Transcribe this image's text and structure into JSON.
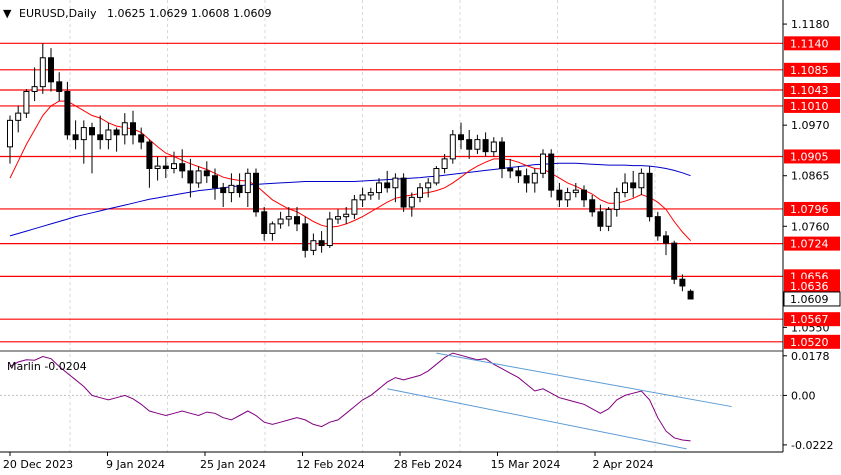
{
  "header": {
    "symbol_timeframe": "EURUSD,Daily",
    "ohlc": "1.0625 1.0629 1.0608 1.0609",
    "marker": "▼"
  },
  "indicator": {
    "label": "Marlin -0.0204"
  },
  "colors": {
    "bull_candle": "#ffffff",
    "bear_candle": "#000000",
    "level_line": "#ff0000",
    "ma_fast": "#ff0000",
    "ma_slow": "#0000c8",
    "oscillator": "#800080",
    "channel": "#5b9bd5",
    "last_price_tag": "#000000"
  },
  "chart_data": [
    {
      "type": "candlestick",
      "title": "EURUSD,Daily",
      "ylim": [
        1.0503,
        1.123
      ],
      "price_ticks": [
        "1.1180",
        "1.0970",
        "1.0865",
        "1.0760",
        "1.0550"
      ],
      "x_ticks": [
        "20 Dec 2023",
        "9 Jan 2024",
        "25 Jan 2024",
        "12 Feb 2024",
        "28 Feb 2024",
        "15 Mar 2024",
        "2 Apr 2024"
      ],
      "levels": [
        {
          "value": 1.114,
          "label": "1.1140"
        },
        {
          "value": 1.1085,
          "label": "1.1085"
        },
        {
          "value": 1.1043,
          "label": "1.1043"
        },
        {
          "value": 1.101,
          "label": "1.1010"
        },
        {
          "value": 1.0905,
          "label": "1.0905"
        },
        {
          "value": 1.0796,
          "label": "1.0796"
        },
        {
          "value": 1.0724,
          "label": "1.0724"
        },
        {
          "value": 1.0656,
          "label": "1.0656"
        },
        {
          "value": 1.0567,
          "label": "1.0567"
        },
        {
          "value": 1.052,
          "label": "1.0520"
        }
      ],
      "extra_tags": [
        {
          "value": 1.0636,
          "label": "1.0636"
        },
        {
          "value": 1.0609,
          "label": "1.0609",
          "style": "last-price"
        }
      ],
      "ohlc": [
        [
          1.0925,
          1.099,
          1.089,
          1.098
        ],
        [
          1.098,
          1.101,
          1.0955,
          1.0995
        ],
        [
          1.0995,
          1.1045,
          1.0985,
          1.104
        ],
        [
          1.104,
          1.109,
          1.102,
          1.105
        ],
        [
          1.105,
          1.114,
          1.1035,
          1.111
        ],
        [
          1.111,
          1.113,
          1.104,
          1.106
        ],
        [
          1.106,
          1.108,
          1.102,
          1.104
        ],
        [
          1.104,
          1.106,
          1.094,
          1.095
        ],
        [
          1.095,
          1.098,
          1.092,
          1.094
        ],
        [
          1.094,
          1.098,
          1.089,
          1.0965
        ],
        [
          1.0965,
          1.0975,
          1.087,
          1.095
        ],
        [
          1.095,
          1.099,
          1.092,
          1.094
        ],
        [
          1.094,
          1.0975,
          1.092,
          1.096
        ],
        [
          1.096,
          1.0965,
          1.0915,
          1.095
        ],
        [
          1.095,
          1.0995,
          1.093,
          1.0975
        ],
        [
          1.0975,
          1.1,
          1.093,
          1.095
        ],
        [
          1.095,
          1.0965,
          1.092,
          1.0935
        ],
        [
          1.0935,
          1.094,
          1.084,
          1.088
        ],
        [
          1.088,
          1.0905,
          1.0855,
          1.0885
        ],
        [
          1.0885,
          1.0905,
          1.086,
          1.088
        ],
        [
          1.088,
          1.0915,
          1.087,
          1.089
        ],
        [
          1.089,
          1.092,
          1.086,
          1.0875
        ],
        [
          1.0875,
          1.09,
          1.082,
          1.085
        ],
        [
          1.085,
          1.0885,
          1.084,
          1.0875
        ],
        [
          1.0875,
          1.0895,
          1.085,
          1.0865
        ],
        [
          1.0865,
          1.088,
          1.0815,
          1.084
        ],
        [
          1.084,
          1.085,
          1.08,
          1.083
        ],
        [
          1.083,
          1.087,
          1.081,
          1.0845
        ],
        [
          1.0845,
          1.087,
          1.082,
          1.083
        ],
        [
          1.083,
          1.088,
          1.08,
          1.087
        ],
        [
          1.087,
          1.088,
          1.078,
          1.079
        ],
        [
          1.079,
          1.08,
          1.073,
          1.0745
        ],
        [
          1.0745,
          1.077,
          1.073,
          1.0765
        ],
        [
          1.0765,
          1.079,
          1.0755,
          1.0775
        ],
        [
          1.0775,
          1.08,
          1.076,
          1.078
        ],
        [
          1.078,
          1.08,
          1.075,
          1.0765
        ],
        [
          1.0765,
          1.078,
          1.0695,
          1.071
        ],
        [
          1.071,
          1.0745,
          1.07,
          1.073
        ],
        [
          1.073,
          1.075,
          1.0705,
          1.072
        ],
        [
          1.072,
          1.079,
          1.0715,
          1.0775
        ],
        [
          1.0775,
          1.0795,
          1.0765,
          1.078
        ],
        [
          1.078,
          1.08,
          1.0765,
          1.0785
        ],
        [
          1.0785,
          1.0825,
          1.0775,
          1.0815
        ],
        [
          1.0815,
          1.084,
          1.08,
          1.0825
        ],
        [
          1.0825,
          1.084,
          1.0815,
          1.083
        ],
        [
          1.083,
          1.086,
          1.0815,
          1.085
        ],
        [
          1.085,
          1.0875,
          1.083,
          1.084
        ],
        [
          1.084,
          1.087,
          1.081,
          1.086
        ],
        [
          1.086,
          1.087,
          1.079,
          1.08
        ],
        [
          1.08,
          1.083,
          1.078,
          1.082
        ],
        [
          1.082,
          1.085,
          1.081,
          1.084
        ],
        [
          1.084,
          1.086,
          1.082,
          1.085
        ],
        [
          1.085,
          1.0885,
          1.0845,
          1.088
        ],
        [
          1.088,
          1.091,
          1.087,
          1.09
        ],
        [
          1.09,
          1.096,
          1.089,
          1.095
        ],
        [
          1.095,
          1.0975,
          1.092,
          1.094
        ],
        [
          1.094,
          1.096,
          1.09,
          1.092
        ],
        [
          1.092,
          1.095,
          1.091,
          1.094
        ],
        [
          1.094,
          1.0955,
          1.0905,
          1.0915
        ],
        [
          1.0915,
          1.0945,
          1.0905,
          1.0935
        ],
        [
          1.0935,
          1.0945,
          1.086,
          1.088
        ],
        [
          1.088,
          1.09,
          1.086,
          1.0875
        ],
        [
          1.0875,
          1.0885,
          1.085,
          1.0865
        ],
        [
          1.0865,
          1.088,
          1.083,
          1.085
        ],
        [
          1.085,
          1.088,
          1.083,
          1.087
        ],
        [
          1.087,
          1.092,
          1.086,
          1.091
        ],
        [
          1.091,
          1.092,
          1.082,
          1.0835
        ],
        [
          1.0835,
          1.085,
          1.08,
          1.0815
        ],
        [
          1.0815,
          1.084,
          1.08,
          1.083
        ],
        [
          1.083,
          1.085,
          1.082,
          1.0835
        ],
        [
          1.0835,
          1.0845,
          1.08,
          1.0815
        ],
        [
          1.0815,
          1.0825,
          1.078,
          1.079
        ],
        [
          1.079,
          1.0805,
          1.075,
          1.076
        ],
        [
          1.076,
          1.08,
          1.075,
          1.0795
        ],
        [
          1.0795,
          1.084,
          1.078,
          1.083
        ],
        [
          1.083,
          1.087,
          1.082,
          1.085
        ],
        [
          1.085,
          1.0875,
          1.082,
          1.084
        ],
        [
          1.084,
          1.088,
          1.0825,
          1.087
        ],
        [
          1.087,
          1.0885,
          1.077,
          1.078
        ],
        [
          1.078,
          1.079,
          1.073,
          1.074
        ],
        [
          1.074,
          1.075,
          1.07,
          1.0725
        ],
        [
          1.0725,
          1.073,
          1.064,
          1.065
        ],
        [
          1.065,
          1.066,
          1.0625,
          1.0636
        ],
        [
          1.0625,
          1.0629,
          1.0608,
          1.0609
        ]
      ],
      "ma_fast": [
        1.086,
        1.0895,
        1.093,
        1.096,
        1.099,
        1.101,
        1.102,
        1.102,
        1.101,
        1.1,
        1.099,
        1.0985,
        1.0975,
        1.0968,
        1.0965,
        1.0962,
        1.0955,
        1.094,
        1.0925,
        1.0912,
        1.0905,
        1.0897,
        1.089,
        1.0884,
        1.0878,
        1.087,
        1.0862,
        1.0858,
        1.0855,
        1.0854,
        1.0845,
        1.083,
        1.0815,
        1.0805,
        1.0796,
        1.079,
        1.078,
        1.077,
        1.0762,
        1.0758,
        1.076,
        1.0765,
        1.0772,
        1.078,
        1.079,
        1.08,
        1.081,
        1.0818,
        1.0822,
        1.0825,
        1.0828,
        1.083,
        1.0834,
        1.084,
        1.085,
        1.0862,
        1.0875,
        1.0885,
        1.0893,
        1.09,
        1.09,
        1.0898,
        1.0893,
        1.0886,
        1.088,
        1.0879,
        1.087,
        1.086,
        1.085,
        1.0843,
        1.0835,
        1.0827,
        1.0815,
        1.0808,
        1.0808,
        1.0812,
        1.0818,
        1.0826,
        1.082,
        1.081,
        1.0795,
        1.077,
        1.0748,
        1.073
      ],
      "ma_slow": [
        1.074,
        1.0745,
        1.075,
        1.0755,
        1.076,
        1.0765,
        1.077,
        1.0775,
        1.078,
        1.0784,
        1.0788,
        1.0792,
        1.0796,
        1.08,
        1.0804,
        1.0808,
        1.0812,
        1.0816,
        1.0819,
        1.0822,
        1.0825,
        1.0828,
        1.0831,
        1.0834,
        1.0836,
        1.0838,
        1.084,
        1.0842,
        1.0844,
        1.0846,
        1.0847,
        1.0848,
        1.0849,
        1.085,
        1.0851,
        1.0852,
        1.0853,
        1.0853,
        1.0853,
        1.0853,
        1.0853,
        1.0853,
        1.0853,
        1.0854,
        1.0855,
        1.0856,
        1.0857,
        1.0858,
        1.0859,
        1.086,
        1.0861,
        1.0863,
        1.0864,
        1.0866,
        1.0868,
        1.087,
        1.0872,
        1.0874,
        1.0876,
        1.0878,
        1.088,
        1.0882,
        1.0884,
        1.0886,
        1.0888,
        1.0889,
        1.089,
        1.0891,
        1.0891,
        1.0891,
        1.089,
        1.0889,
        1.0888,
        1.0887,
        1.0887,
        1.0887,
        1.0886,
        1.0886,
        1.0885,
        1.0883,
        1.088,
        1.0876,
        1.0871,
        1.0865
      ]
    },
    {
      "type": "line",
      "title": "Marlin -0.0204",
      "ylim": [
        -0.0245,
        0.0195
      ],
      "y_ticks": [
        "0.0178",
        "0.00",
        "-0.0222"
      ],
      "values": [
        0.013,
        0.015,
        0.016,
        0.0158,
        0.0175,
        0.0165,
        0.013,
        0.01,
        0.007,
        0.004,
        0.0,
        -0.001,
        -0.002,
        -0.001,
        0.0,
        -0.0015,
        -0.004,
        -0.007,
        -0.008,
        -0.009,
        -0.008,
        -0.007,
        -0.008,
        -0.009,
        -0.0075,
        -0.008,
        -0.01,
        -0.011,
        -0.009,
        -0.007,
        -0.009,
        -0.012,
        -0.013,
        -0.012,
        -0.011,
        -0.01,
        -0.011,
        -0.013,
        -0.014,
        -0.012,
        -0.011,
        -0.008,
        -0.005,
        -0.002,
        0.0,
        0.003,
        0.006,
        0.008,
        0.007,
        0.008,
        0.009,
        0.011,
        0.014,
        0.017,
        0.019,
        0.018,
        0.017,
        0.016,
        0.0165,
        0.014,
        0.012,
        0.01,
        0.008,
        0.005,
        0.002,
        0.003,
        0.001,
        -0.001,
        -0.002,
        -0.003,
        -0.004,
        -0.006,
        -0.008,
        -0.006,
        -0.002,
        0.0,
        0.001,
        0.002,
        -0.002,
        -0.01,
        -0.016,
        -0.019,
        -0.02,
        -0.0204
      ]
    }
  ]
}
